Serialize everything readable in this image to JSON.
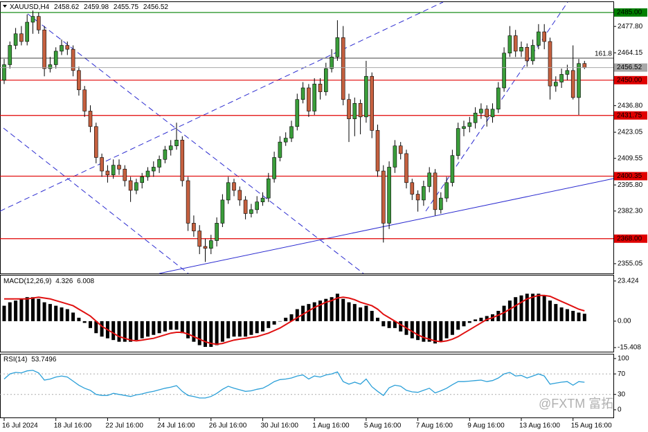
{
  "chart_data": {
    "type": "candlestick",
    "symbol": "XAUUSD,H4",
    "categories": [
      "16 Jul 2024",
      null,
      null,
      null,
      null,
      null,
      null,
      null,
      null,
      "18 Jul 16:00",
      null,
      null,
      null,
      null,
      null,
      null,
      null,
      null,
      "22 Jul 16:00",
      null,
      null,
      null,
      null,
      null,
      null,
      null,
      null,
      "24 Jul 16:00",
      null,
      null,
      null,
      null,
      null,
      null,
      null,
      null,
      "26 Jul 16:00",
      null,
      null,
      null,
      null,
      null,
      null,
      null,
      null,
      "30 Jul 16:00",
      null,
      null,
      null,
      null,
      null,
      null,
      null,
      null,
      "1 Aug 16:00",
      null,
      null,
      null,
      null,
      null,
      null,
      null,
      null,
      "5 Aug 16:00",
      null,
      null,
      null,
      null,
      null,
      null,
      null,
      null,
      "7 Aug 16:00",
      null,
      null,
      null,
      null,
      null,
      null,
      null,
      null,
      "9 Aug 16:00",
      null,
      null,
      null,
      null,
      null,
      null,
      null,
      null,
      "13 Aug 16:00",
      null,
      null,
      null,
      null,
      null,
      null,
      null,
      null,
      "15 Aug 16:00",
      null,
      null
    ],
    "ohlc": [
      [
        2450,
        2461,
        2448,
        2458
      ],
      [
        2458,
        2470,
        2456,
        2468
      ],
      [
        2468,
        2477,
        2466,
        2474
      ],
      [
        2474,
        2478,
        2468,
        2470
      ],
      [
        2470,
        2484,
        2468,
        2480
      ],
      [
        2480,
        2486,
        2474,
        2483
      ],
      [
        2483,
        2485,
        2474,
        2476
      ],
      [
        2476,
        2478,
        2452,
        2456
      ],
      [
        2456,
        2462,
        2454,
        2458
      ],
      [
        2458,
        2467,
        2456,
        2465
      ],
      [
        2465,
        2471,
        2463,
        2468
      ],
      [
        2468,
        2470,
        2463,
        2466
      ],
      [
        2466,
        2468,
        2452,
        2455
      ],
      [
        2455,
        2457,
        2442,
        2445
      ],
      [
        2445,
        2447,
        2431,
        2434
      ],
      [
        2434,
        2437,
        2423,
        2426
      ],
      [
        2426,
        2428,
        2407,
        2410
      ],
      [
        2410,
        2412,
        2400,
        2403
      ],
      [
        2403,
        2406,
        2397,
        2401
      ],
      [
        2401,
        2409,
        2399,
        2406
      ],
      [
        2406,
        2409,
        2401,
        2404
      ],
      [
        2404,
        2406,
        2395,
        2398
      ],
      [
        2398,
        2400,
        2387,
        2393
      ],
      [
        2393,
        2399,
        2391,
        2397
      ],
      [
        2397,
        2402,
        2394,
        2400
      ],
      [
        2400,
        2405,
        2398,
        2403
      ],
      [
        2403,
        2408,
        2400,
        2405
      ],
      [
        2405,
        2411,
        2402,
        2409
      ],
      [
        2409,
        2416,
        2407,
        2414
      ],
      [
        2414,
        2419,
        2411,
        2416
      ],
      [
        2416,
        2428,
        2414,
        2419
      ],
      [
        2419,
        2421,
        2395,
        2398
      ],
      [
        2398,
        2400,
        2372,
        2376
      ],
      [
        2376,
        2380,
        2369,
        2372
      ],
      [
        2372,
        2375,
        2360,
        2364
      ],
      [
        2364,
        2368,
        2356,
        2363
      ],
      [
        2363,
        2370,
        2360,
        2367
      ],
      [
        2367,
        2379,
        2364,
        2376
      ],
      [
        2376,
        2391,
        2374,
        2388
      ],
      [
        2388,
        2400,
        2386,
        2397
      ],
      [
        2397,
        2399,
        2390,
        2393
      ],
      [
        2393,
        2395,
        2385,
        2388
      ],
      [
        2388,
        2390,
        2378,
        2381
      ],
      [
        2381,
        2386,
        2379,
        2383
      ],
      [
        2383,
        2390,
        2381,
        2387
      ],
      [
        2387,
        2392,
        2385,
        2389
      ],
      [
        2389,
        2402,
        2387,
        2399
      ],
      [
        2399,
        2413,
        2397,
        2410
      ],
      [
        2410,
        2421,
        2408,
        2418
      ],
      [
        2418,
        2423,
        2416,
        2420
      ],
      [
        2420,
        2429,
        2418,
        2426
      ],
      [
        2426,
        2443,
        2424,
        2440
      ],
      [
        2440,
        2449,
        2438,
        2446
      ],
      [
        2446,
        2448,
        2431,
        2434
      ],
      [
        2434,
        2451,
        2432,
        2448
      ],
      [
        2448,
        2451,
        2440,
        2444
      ],
      [
        2444,
        2459,
        2442,
        2456
      ],
      [
        2456,
        2466,
        2454,
        2462
      ],
      [
        2462,
        2481,
        2460,
        2472
      ],
      [
        2472,
        2478,
        2437,
        2440
      ],
      [
        2440,
        2443,
        2418,
        2430
      ],
      [
        2430,
        2441,
        2421,
        2438
      ],
      [
        2438,
        2440,
        2422,
        2431
      ],
      [
        2431,
        2460,
        2428,
        2452
      ],
      [
        2452,
        2454,
        2420,
        2424
      ],
      [
        2424,
        2427,
        2400,
        2403
      ],
      [
        2403,
        2406,
        2366,
        2376
      ],
      [
        2376,
        2408,
        2373,
        2405
      ],
      [
        2405,
        2419,
        2402,
        2416
      ],
      [
        2416,
        2418,
        2409,
        2412
      ],
      [
        2412,
        2414,
        2394,
        2397
      ],
      [
        2397,
        2399,
        2388,
        2391
      ],
      [
        2391,
        2393,
        2382,
        2388
      ],
      [
        2388,
        2398,
        2385,
        2395
      ],
      [
        2395,
        2405,
        2392,
        2402
      ],
      [
        2402,
        2404,
        2380,
        2383
      ],
      [
        2383,
        2392,
        2381,
        2389
      ],
      [
        2389,
        2400,
        2387,
        2397
      ],
      [
        2397,
        2414,
        2395,
        2411
      ],
      [
        2411,
        2428,
        2409,
        2425
      ],
      [
        2425,
        2429,
        2421,
        2426
      ],
      [
        2426,
        2431,
        2423,
        2428
      ],
      [
        2428,
        2436,
        2425,
        2433
      ],
      [
        2433,
        2438,
        2430,
        2435
      ],
      [
        2435,
        2437,
        2426,
        2431
      ],
      [
        2431,
        2438,
        2428,
        2435
      ],
      [
        2435,
        2449,
        2433,
        2446
      ],
      [
        2446,
        2467,
        2444,
        2464
      ],
      [
        2464,
        2478,
        2462,
        2473
      ],
      [
        2473,
        2476,
        2462,
        2465
      ],
      [
        2465,
        2470,
        2462,
        2467
      ],
      [
        2467,
        2469,
        2457,
        2460
      ],
      [
        2460,
        2471,
        2458,
        2468
      ],
      [
        2468,
        2479,
        2466,
        2475
      ],
      [
        2475,
        2479,
        2466,
        2470
      ],
      [
        2470,
        2472,
        2440,
        2447
      ],
      [
        2447,
        2452,
        2444,
        2449
      ],
      [
        2449,
        2456,
        2446,
        2453
      ],
      [
        2453,
        2458,
        2450,
        2455
      ],
      [
        2455,
        2468,
        2440,
        2441
      ],
      [
        2441,
        2461,
        2432,
        2458.62
      ],
      [
        2458.62,
        2459.98,
        2455.75,
        2456.52
      ]
    ],
    "up_color": "#3a9d3a",
    "down_color": "#c5603f",
    "ylim": [
      2350,
      2490.4
    ],
    "yticks": [
      {
        "value": 2477.8,
        "label": "2477.80"
      },
      {
        "value": 2464.15,
        "label": "2464.15"
      },
      {
        "value": 2436.8,
        "label": "2436.80"
      },
      {
        "value": 2423.05,
        "label": "2423.05"
      },
      {
        "value": 2409.55,
        "label": "2409.55"
      },
      {
        "value": 2395.8,
        "label": "2395.80"
      },
      {
        "value": 2382.3,
        "label": "2382.30"
      },
      {
        "value": 2355.05,
        "label": "2355.05"
      }
    ],
    "levels": [
      {
        "value": 2485,
        "label": "2485.00",
        "color": "#008000"
      },
      {
        "value": 2450,
        "label": "2450.00",
        "color": "#e00000"
      },
      {
        "value": 2431.75,
        "label": "2431.75",
        "color": "#e00000"
      },
      {
        "value": 2400.35,
        "label": "2400.35",
        "color": "#e00000"
      },
      {
        "value": 2368,
        "label": "2368.00",
        "color": "#e00000"
      }
    ],
    "last_price_color": "#a8a8a8",
    "fib": {
      "label": "161.8",
      "value": 2461.4
    },
    "indicators": [
      {
        "type": "macd",
        "name": "MACD(12,26,9)",
        "histogram": [
          9,
          11,
          12,
          13,
          14,
          14,
          13,
          11,
          10,
          9,
          8,
          7,
          5,
          2,
          -1,
          -4,
          -7,
          -9,
          -10,
          -11,
          -12,
          -12,
          -12,
          -11,
          -10,
          -9,
          -8,
          -7,
          -6,
          -5,
          -5,
          -7,
          -10,
          -12,
          -14,
          -15,
          -15,
          -14,
          -12,
          -10,
          -9,
          -9,
          -9,
          -8,
          -7,
          -6,
          -4,
          -2,
          0,
          2,
          4,
          7,
          9,
          10,
          11,
          12,
          13,
          14,
          16,
          13,
          11,
          10,
          8,
          9,
          6,
          2,
          -3,
          -4,
          -4,
          -6,
          -8,
          -10,
          -11,
          -12,
          -12,
          -13,
          -12,
          -10,
          -8,
          -5,
          -3,
          -1,
          1,
          2,
          3,
          4,
          6,
          9,
          12,
          14,
          15,
          16,
          16,
          16,
          15,
          12,
          10,
          8,
          7,
          6,
          5,
          4.326
        ],
        "signal": [
          13,
          13,
          13,
          13,
          13,
          13.5,
          14,
          13.5,
          13,
          12,
          11,
          10,
          9,
          7,
          5,
          3,
          0,
          -3,
          -5,
          -7,
          -9,
          -10,
          -11,
          -11.5,
          -11,
          -10.5,
          -10,
          -9,
          -8,
          -7,
          -6.5,
          -6.5,
          -7.5,
          -9,
          -10.5,
          -12,
          -13,
          -13.5,
          -13,
          -12,
          -11,
          -10.5,
          -10,
          -9.5,
          -9,
          -8,
          -7,
          -5.5,
          -4,
          -2,
          0,
          2,
          4,
          6,
          8,
          9.5,
          11,
          12,
          13.5,
          14,
          13.5,
          12.5,
          11,
          10,
          9,
          7,
          4,
          2,
          0,
          -2,
          -4,
          -6,
          -8,
          -9.5,
          -10.5,
          -11.5,
          -12,
          -11.5,
          -10.5,
          -9,
          -7,
          -5,
          -3,
          -1,
          1,
          2,
          3.5,
          5,
          7,
          9,
          11,
          13,
          14,
          15,
          15,
          14.5,
          13,
          11.5,
          10,
          8.5,
          7,
          6.008
        ],
        "histogram_color": "#000000",
        "signal_color": "#e01010",
        "ylim": [
          -17.8,
          26.6
        ],
        "yticks": [
          23.424,
          {
            "value": 0,
            "label": "0.00"
          },
          -15.408
        ]
      },
      {
        "type": "rsi",
        "name": "RSI(14)",
        "values": [
          60,
          70,
          73,
          72,
          76,
          77,
          72,
          58,
          60,
          64,
          66,
          64,
          56,
          48,
          42,
          38,
          30,
          28,
          28,
          32,
          30,
          28,
          26,
          29,
          31,
          34,
          36,
          39,
          42,
          44,
          47,
          36,
          28,
          26,
          23,
          23,
          26,
          32,
          40,
          46,
          42,
          39,
          36,
          37,
          40,
          42,
          48,
          55,
          59,
          60,
          62,
          66,
          68,
          60,
          66,
          64,
          68,
          70,
          74,
          55,
          50,
          54,
          50,
          60,
          45,
          36,
          28,
          43,
          48,
          46,
          38,
          35,
          34,
          38,
          42,
          33,
          37,
          42,
          49,
          55,
          55,
          56,
          57,
          58,
          55,
          57,
          62,
          70,
          73,
          66,
          67,
          62,
          66,
          70,
          66,
          50,
          52,
          54,
          55,
          48,
          55,
          53.7496
        ],
        "color": "#2a9fd8",
        "ylim": [
          -15,
          108
        ],
        "yticks": [
          100,
          70,
          30,
          0
        ],
        "levels": [
          70,
          30
        ]
      }
    ],
    "watermark": "@FXTM 富拓"
  }
}
